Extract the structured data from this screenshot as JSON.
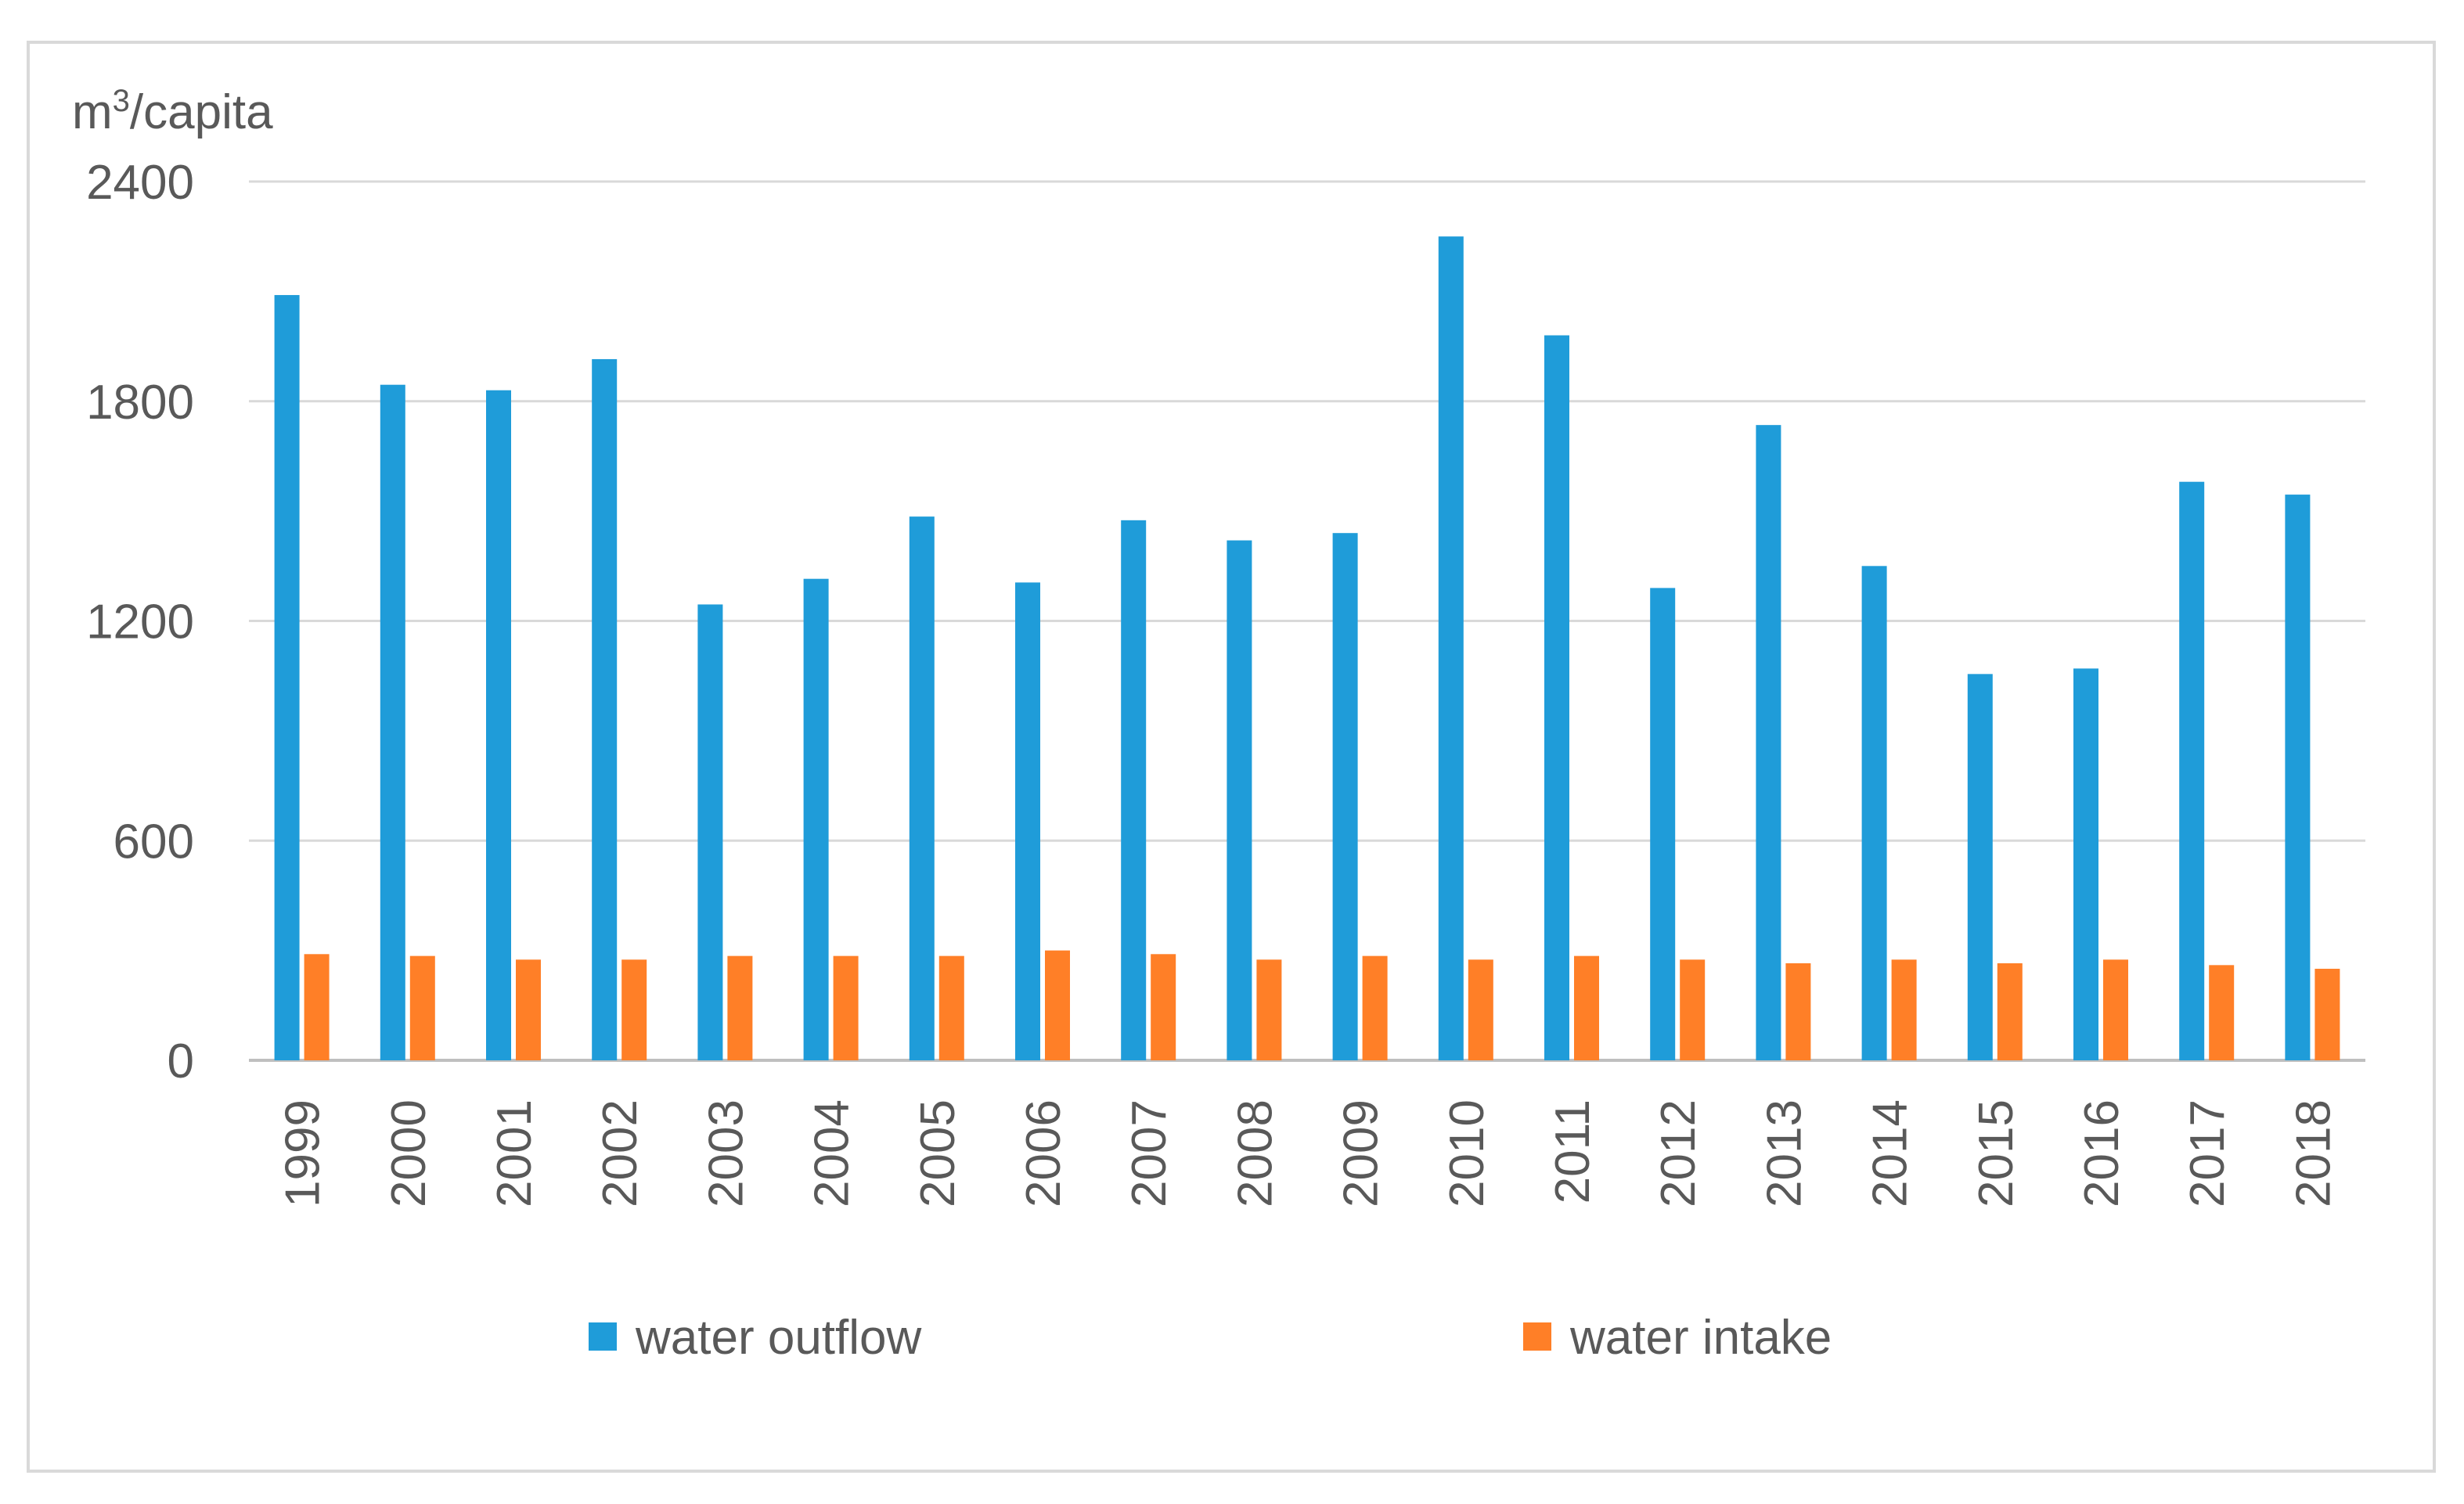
{
  "chart_data": {
    "type": "bar",
    "title": "",
    "xlabel": "",
    "ylabel": "m³/capita",
    "ylabel_base": "m",
    "ylabel_superscript": "3",
    "ylabel_rest": "/capita",
    "ylim": [
      0,
      2400
    ],
    "yticks": [
      0,
      600,
      1200,
      1800,
      2400
    ],
    "ytick_labels": [
      "0",
      "600",
      "1200",
      "1800",
      "2400"
    ],
    "grid": true,
    "legend_position": "bottom",
    "categories": [
      "1999",
      "2000",
      "2001",
      "2002",
      "2003",
      "2004",
      "2005",
      "2006",
      "2007",
      "2008",
      "2009",
      "2010",
      "2011",
      "2012",
      "2013",
      "2014",
      "2015",
      "2016",
      "2017",
      "2018"
    ],
    "series": [
      {
        "name": "water outflow",
        "color": "#1f9cd9",
        "values": [
          2090,
          1845,
          1830,
          1915,
          1245,
          1315,
          1485,
          1305,
          1475,
          1420,
          1440,
          2250,
          1980,
          1290,
          1735,
          1350,
          1055,
          1070,
          1580,
          1545
        ]
      },
      {
        "name": "water intake",
        "color": "#ff7f27",
        "values": [
          290,
          285,
          275,
          275,
          285,
          285,
          285,
          300,
          290,
          275,
          285,
          275,
          285,
          275,
          265,
          275,
          265,
          275,
          260,
          250
        ]
      }
    ]
  }
}
